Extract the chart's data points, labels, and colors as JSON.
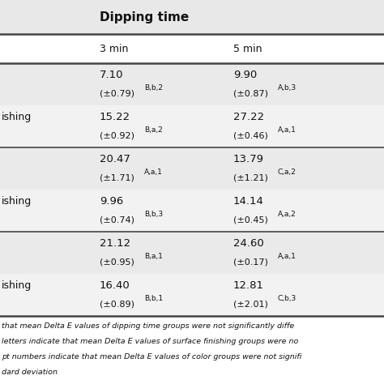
{
  "title": "Dipping time",
  "col_headers": [
    "3 min",
    "5 min"
  ],
  "row_label_texts": [
    "",
    "ishing",
    "",
    "ishing",
    "",
    "ishing"
  ],
  "cell_data": [
    {
      "main": "7.10",
      "sub": "(±0.79)",
      "sup": "B,b,2",
      "col": 0,
      "row": 0
    },
    {
      "main": "9.90",
      "sub": "(±0.87)",
      "sup": "A,b,3",
      "col": 1,
      "row": 0
    },
    {
      "main": "15.22",
      "sub": "(±0.92)",
      "sup": "B,a,2",
      "col": 0,
      "row": 1
    },
    {
      "main": "27.22",
      "sub": "(±0.46)",
      "sup": "A,a,1",
      "col": 1,
      "row": 1
    },
    {
      "main": "20.47",
      "sub": "(±1.71)",
      "sup": "A,a,1",
      "col": 0,
      "row": 2
    },
    {
      "main": "13.79",
      "sub": "(±1.21)",
      "sup": "C,a,2",
      "col": 1,
      "row": 2
    },
    {
      "main": "9.96",
      "sub": "(±0.74)",
      "sup": "B,b,3",
      "col": 0,
      "row": 3
    },
    {
      "main": "14.14",
      "sub": "(±0.45)",
      "sup": "A,a,2",
      "col": 1,
      "row": 3
    },
    {
      "main": "21.12",
      "sub": "(±0.95)",
      "sup": "B,a,1",
      "col": 0,
      "row": 4
    },
    {
      "main": "24.60",
      "sub": "(±0.17)",
      "sup": "A,a,1",
      "col": 1,
      "row": 4
    },
    {
      "main": "16.40",
      "sub": "(±0.89)",
      "sup": "B,b,1",
      "col": 0,
      "row": 5
    },
    {
      "main": "12.81",
      "sub": "(±2.01)",
      "sup": "C,b,3",
      "col": 1,
      "row": 5
    }
  ],
  "footer_lines": [
    "that mean Delta E values of dipping time groups were not significantly diffe",
    "letters indicate that mean Delta E values of surface finishing groups were no",
    "pt numbers indicate that mean Delta E values of color groups were not signifi",
    "dard deviation"
  ],
  "bg_header": "#e8e8e8",
  "bg_row_even": "#eaeaea",
  "bg_row_odd": "#f2f2f2",
  "bg_colhdr": "#ffffff",
  "bg_footer": "#ffffff",
  "divider_color": "#444444",
  "text_color": "#111111"
}
